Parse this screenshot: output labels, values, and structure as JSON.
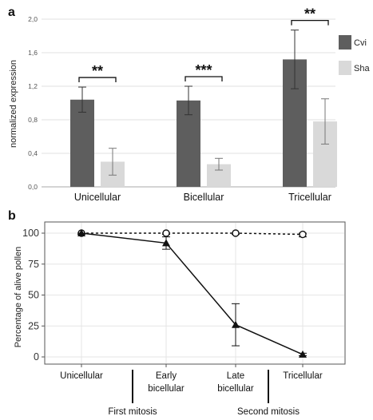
{
  "chart_data": [
    {
      "panel": "a",
      "type": "bar",
      "title": "",
      "xlabel": "",
      "ylabel": "normalized expression",
      "categories": [
        "Unicellular",
        "Bicellular",
        "Tricellular"
      ],
      "ylim": [
        0,
        2.0
      ],
      "yticks": [
        "0,0",
        "0,4",
        "0,8",
        "1,2",
        "1,6",
        "2,0"
      ],
      "ytick_values": [
        0,
        0.4,
        0.8,
        1.2,
        1.6,
        2.0
      ],
      "grid": true,
      "legend": "right",
      "series": [
        {
          "name": "Cvi",
          "color": "#5e5e5e",
          "values": [
            1.04,
            1.03,
            1.52
          ],
          "errors": [
            0.15,
            0.17,
            0.35
          ]
        },
        {
          "name": "Sha",
          "color": "#d9d9d9",
          "values": [
            0.3,
            0.27,
            0.78
          ],
          "errors": [
            0.16,
            0.07,
            0.27
          ]
        }
      ],
      "significance": [
        "**",
        "***",
        "**"
      ]
    },
    {
      "panel": "b",
      "type": "line",
      "title": "",
      "xlabel": "",
      "ylabel": "Percentage of alive pollen",
      "categories": [
        "Unicellular",
        "Early bicellular",
        "Late bicellular",
        "Tricellular"
      ],
      "ylim": [
        0,
        100
      ],
      "yticks": [
        "0",
        "25",
        "50",
        "75",
        "100"
      ],
      "ytick_values": [
        0,
        25,
        50,
        75,
        100
      ],
      "grid": true,
      "series": [
        {
          "style": "dashed",
          "marker": "open-circle",
          "values": [
            100,
            100,
            100,
            99
          ],
          "errors": [
            1,
            1,
            1,
            2
          ]
        },
        {
          "style": "solid",
          "marker": "filled-triangle",
          "values": [
            100,
            92,
            26,
            2
          ],
          "errors": [
            1,
            5,
            17,
            1
          ]
        }
      ],
      "stage_separators": [
        "First mitosis",
        "Second mitosis"
      ]
    }
  ]
}
